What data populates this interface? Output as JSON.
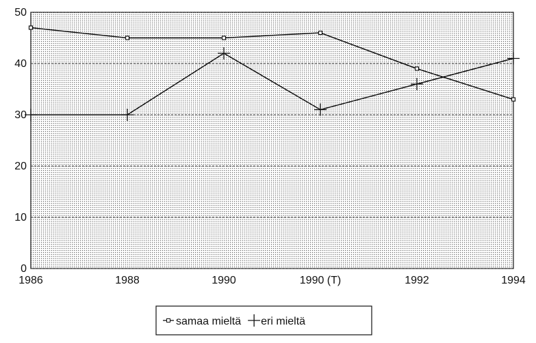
{
  "chart_data": {
    "type": "line",
    "categories": [
      "1986",
      "1988",
      "1990",
      "1990 (T)",
      "1992",
      "1994"
    ],
    "series": [
      {
        "name": "samaa mieltä",
        "color": "#111111",
        "marker": "square",
        "values": [
          47,
          45,
          45,
          46,
          39,
          33
        ]
      },
      {
        "name": "eri mieltä",
        "color": "#111111",
        "marker": "plus",
        "values": [
          30,
          30,
          42,
          31,
          36,
          41
        ]
      }
    ],
    "ylim": [
      0,
      50
    ],
    "yticks": [
      0,
      10,
      20,
      30,
      40,
      50
    ],
    "grid": true,
    "legend": "bottom"
  }
}
